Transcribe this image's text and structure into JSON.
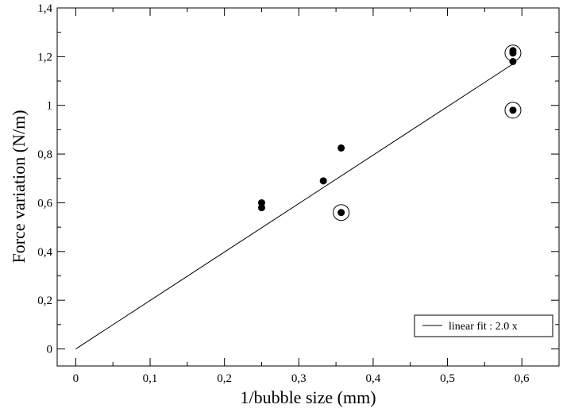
{
  "chart_data": {
    "type": "scatter",
    "xlabel": "1/bubble size (mm)",
    "ylabel": "Force variation (N/m)",
    "xlim": [
      -0.025,
      0.65
    ],
    "ylim": [
      -0.07,
      1.4
    ],
    "xticks": [
      0,
      0.1,
      0.2,
      0.3,
      0.4,
      0.5,
      0.6
    ],
    "xticklabels": [
      "0",
      "0,1",
      "0,2",
      "0,3",
      "0,4",
      "0,5",
      "0,6"
    ],
    "yticks": [
      0,
      0.2,
      0.4,
      0.6,
      0.8,
      1.0,
      1.2,
      1.4
    ],
    "yticklabels": [
      "0",
      "0,2",
      "0,4",
      "0,6",
      "0,8",
      "1",
      "1,2",
      "1,4"
    ],
    "grid": false,
    "legend_position": "bottom-right",
    "series": [
      {
        "name": "",
        "style": "filled-circle",
        "points": [
          {
            "x": 0.25,
            "y": 0.6
          },
          {
            "x": 0.25,
            "y": 0.58
          },
          {
            "x": 0.333,
            "y": 0.69
          },
          {
            "x": 0.357,
            "y": 0.825
          },
          {
            "x": 0.357,
            "y": 0.56
          },
          {
            "x": 0.588,
            "y": 1.225
          },
          {
            "x": 0.588,
            "y": 1.215
          },
          {
            "x": 0.588,
            "y": 1.18
          },
          {
            "x": 0.588,
            "y": 0.98
          }
        ]
      },
      {
        "name": "",
        "style": "open-circle",
        "points": [
          {
            "x": 0.357,
            "y": 0.56
          },
          {
            "x": 0.588,
            "y": 1.215
          },
          {
            "x": 0.588,
            "y": 0.98
          }
        ]
      },
      {
        "name": "linear fit  : 2.0 x",
        "style": "line",
        "slope": 2.0,
        "points": [
          {
            "x": 0,
            "y": 0
          },
          {
            "x": 0.588,
            "y": 1.17
          }
        ]
      }
    ]
  }
}
